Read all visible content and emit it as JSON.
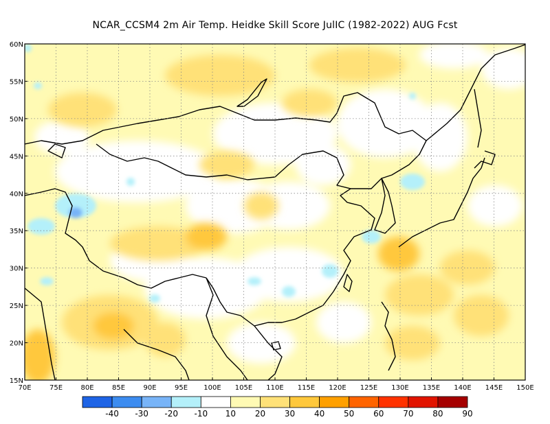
{
  "title": "NCAR_CCSM4  2m Air Temp. Heidke Skill Score JulIC (1982-2022) AUG Fcst",
  "map": {
    "lon_labels": [
      "70E",
      "75E",
      "80E",
      "85E",
      "90E",
      "95E",
      "100E",
      "105E",
      "110E",
      "115E",
      "120E",
      "125E",
      "130E",
      "135E",
      "140E",
      "145E",
      "150E"
    ],
    "lat_labels": [
      "60N",
      "55N",
      "50N",
      "45N",
      "40N",
      "35N",
      "30N",
      "25N",
      "20N",
      "15N"
    ],
    "lon_range": [
      70,
      150
    ],
    "lat_range": [
      15,
      60
    ],
    "grid": "dotted"
  },
  "colorbar": {
    "labels": [
      "-40",
      "-30",
      "-20",
      "-10",
      "10",
      "20",
      "30",
      "40",
      "50",
      "60",
      "70",
      "80",
      "90"
    ],
    "colors": [
      "#1e64e6",
      "#3c8cf0",
      "#78b4f8",
      "#b4f0fa",
      "#ffffff",
      "#fffab4",
      "#ffe178",
      "#ffc83c",
      "#ffa000",
      "#ff6400",
      "#ff3200",
      "#e11400",
      "#a50000"
    ]
  },
  "colors": {
    "land_outline": "#000000",
    "frame": "#000000",
    "grid": "#888888"
  }
}
